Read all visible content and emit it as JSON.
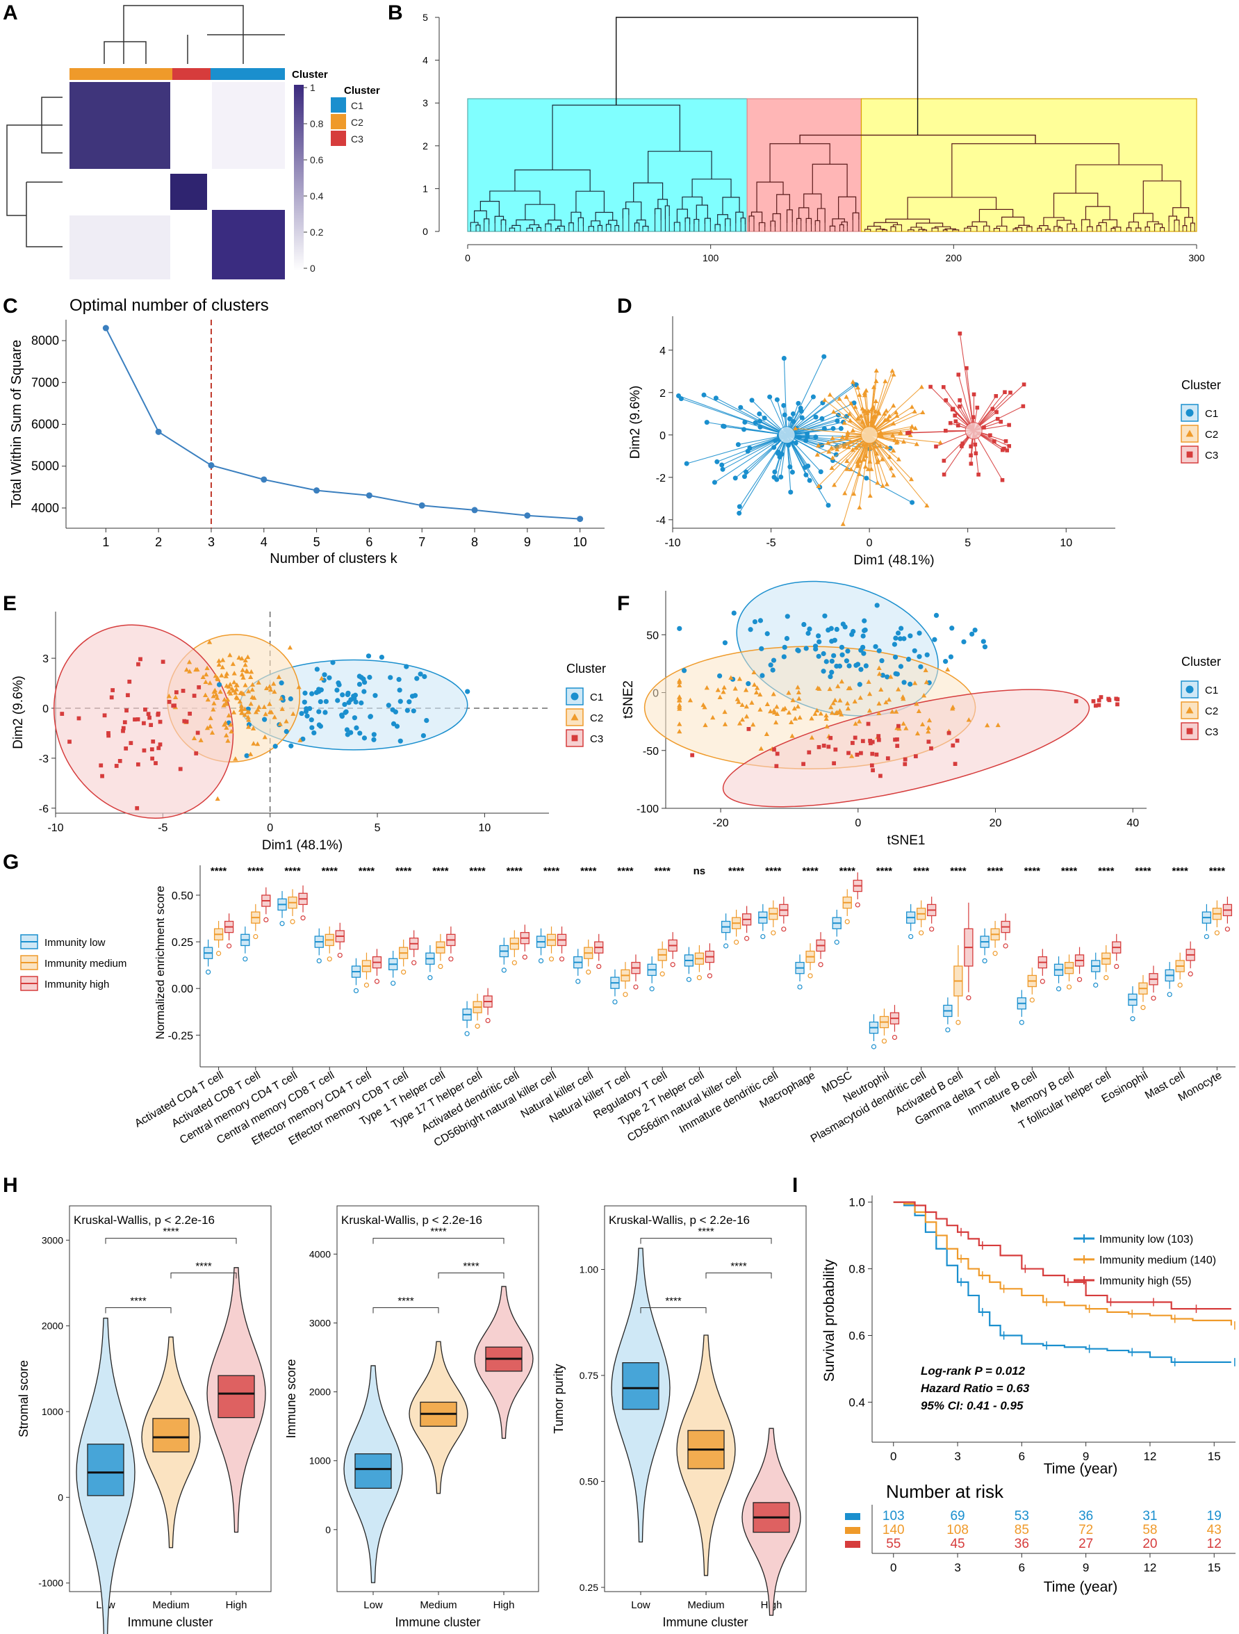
{
  "panel_letters": [
    "A",
    "B",
    "C",
    "D",
    "E",
    "F",
    "G",
    "H",
    "I"
  ],
  "colors": {
    "c1": "#1a8fce",
    "c2": "#ef9a2a",
    "c3": "#d63c3c",
    "heat": "#3b2a7e",
    "cyan": "#80ffff",
    "pink": "#ffb6b6",
    "yellow": "#ffff99"
  },
  "chart_data": [
    {
      "id": "A",
      "type": "heatmap",
      "title": "",
      "legend_title": "Cluster",
      "legend_items": [
        "C1",
        "C2",
        "C3"
      ],
      "scale_title": "Cluster",
      "scale_ticks": [
        "1",
        "0.8",
        "0.6",
        "0.4",
        "0.2",
        "0"
      ],
      "block_order": [
        "C2",
        "C3",
        "C1"
      ],
      "block_sizes": [
        140,
        55,
        103
      ]
    },
    {
      "id": "B",
      "type": "dendrogram",
      "y_ticks": [
        "5",
        "4",
        "3",
        "2",
        "1",
        "0"
      ],
      "x_ticks": [
        "0",
        "100",
        "200",
        "300"
      ],
      "ylim": [
        0,
        5
      ],
      "xlim": [
        0,
        300
      ],
      "merge_heights": {
        "root": 5.0,
        "left": 2.95,
        "right": 2.25
      },
      "groups": [
        {
          "range": [
            0,
            115
          ],
          "fill": "cyan"
        },
        {
          "range": [
            115,
            162
          ],
          "fill": "pink"
        },
        {
          "range": [
            162,
            300
          ],
          "fill": "yellow"
        }
      ]
    },
    {
      "id": "C",
      "type": "line",
      "title": "Optimal number of clusters",
      "xlabel": "Number of clusters k",
      "ylabel": "Total Within Sum of Square",
      "x": [
        1,
        2,
        3,
        4,
        5,
        6,
        7,
        8,
        9,
        10
      ],
      "values": [
        8300,
        5820,
        5020,
        4680,
        4420,
        4300,
        4060,
        3950,
        3820,
        3740
      ],
      "ylim": [
        3600,
        8500
      ],
      "y_ticks": [
        "4000",
        "5000",
        "6000",
        "7000",
        "8000"
      ],
      "optimal_k": 3
    },
    {
      "id": "D",
      "type": "scatter",
      "xlabel": "Dim1 (48.1%)",
      "ylabel": "Dim2 (9.6%)",
      "legend_title": "Cluster",
      "legend_items": [
        "C1",
        "C2",
        "C3"
      ],
      "x_ticks": [
        "-10",
        "-5",
        "0",
        "5",
        "10"
      ],
      "y_ticks": [
        "4",
        "2",
        "0",
        "-2",
        "-4"
      ],
      "xlim": [
        -10,
        12.5
      ],
      "ylim": [
        -4.4,
        5.6
      ],
      "centroids": [
        [
          -4.2,
          0
        ],
        [
          0,
          0
        ],
        [
          5.3,
          0.2
        ]
      ]
    },
    {
      "id": "E",
      "type": "scatter",
      "xlabel": "Dim1 (48.1%)",
      "ylabel": "Dim2 (9.6%)",
      "legend_title": "Cluster",
      "legend_items": [
        "C1",
        "C2",
        "C3"
      ],
      "x_ticks": [
        "-10",
        "-5",
        "0",
        "5",
        "10"
      ],
      "y_ticks": [
        "3",
        "0",
        "-3",
        "-6"
      ],
      "xlim": [
        -10,
        13
      ],
      "ylim": [
        -6.3,
        5.8
      ],
      "centroids": [
        [
          3.9,
          0.2
        ],
        [
          -1.7,
          0.6
        ],
        [
          -5.9,
          -0.8
        ]
      ]
    },
    {
      "id": "F",
      "type": "scatter",
      "xlabel": "tSNE1",
      "ylabel": "tSNE2",
      "legend_title": "Cluster",
      "legend_items": [
        "C1",
        "C2",
        "C3"
      ],
      "x_ticks": [
        "-20",
        "0",
        "20",
        "40"
      ],
      "y_ticks": [
        "50",
        "0",
        "-50",
        "-100"
      ],
      "xlim": [
        -28,
        42
      ],
      "ylim": [
        -100,
        88
      ],
      "centroids": [
        [
          -3,
          38
        ],
        [
          -7,
          -13
        ],
        [
          1,
          -48
        ]
      ]
    },
    {
      "id": "G",
      "type": "box",
      "ylabel": "Normalized enrichment score",
      "y_ticks": [
        "0.50",
        "0.25",
        "0.00",
        "-0.25"
      ],
      "ylim": [
        -0.42,
        0.66
      ],
      "legend_items": [
        "Immunity low",
        "Immunity medium",
        "Immunity high"
      ],
      "categories": [
        "Activated CD4 T cell",
        "Activated CD8 T cell",
        "Central memory CD4 T cell",
        "Central memory CD8 T cell",
        "Effector memory CD4 T cell",
        "Effector memory CD8 T cell",
        "Type 1 T helper cell",
        "Type 17 T helper cell",
        "Activated dendritic cell",
        "CD56bright natural killer cell",
        "Natural killer cell",
        "Natural killer T cell",
        "Regulatory T cell",
        "Type 2 T helper cell",
        "CD56dim natural killer cell",
        "Immature dendritic cell",
        "Macrophage",
        "MDSC",
        "Neutrophil",
        "Plasmacytoid dendritic cell",
        "Activated B cell",
        "Gamma delta T cell",
        "Immature B cell",
        "Memory B cell",
        "T follicular helper cell",
        "Eosinophil",
        "Mast cell",
        "Monocyte"
      ],
      "significance": [
        "****",
        "****",
        "****",
        "****",
        "****",
        "****",
        "****",
        "****",
        "****",
        "****",
        "****",
        "****",
        "****",
        "ns",
        "****",
        "****",
        "****",
        "****",
        "****",
        "****",
        "****",
        "****",
        "****",
        "****",
        "****",
        "****",
        "****",
        "****"
      ],
      "medians": [
        [
          0.19,
          0.29,
          0.33
        ],
        [
          0.26,
          0.38,
          0.47
        ],
        [
          0.45,
          0.46,
          0.48
        ],
        [
          0.25,
          0.26,
          0.28
        ],
        [
          0.09,
          0.12,
          0.14
        ],
        [
          0.13,
          0.19,
          0.24
        ],
        [
          0.16,
          0.22,
          0.26
        ],
        [
          -0.14,
          -0.1,
          -0.07
        ],
        [
          0.2,
          0.24,
          0.27
        ],
        [
          0.25,
          0.26,
          0.26
        ],
        [
          0.14,
          0.19,
          0.22
        ],
        [
          0.03,
          0.07,
          0.11
        ],
        [
          0.1,
          0.18,
          0.23
        ],
        [
          0.15,
          0.16,
          0.17
        ],
        [
          0.33,
          0.35,
          0.37
        ],
        [
          0.38,
          0.4,
          0.42
        ],
        [
          0.11,
          0.17,
          0.23
        ],
        [
          0.35,
          0.46,
          0.55
        ],
        [
          -0.21,
          -0.18,
          -0.16
        ],
        [
          0.38,
          0.4,
          0.42
        ],
        [
          -0.12,
          0.04,
          0.22
        ],
        [
          0.25,
          0.29,
          0.33
        ],
        [
          -0.08,
          0.04,
          0.14
        ],
        [
          0.1,
          0.11,
          0.15
        ],
        [
          0.12,
          0.16,
          0.22
        ],
        [
          -0.06,
          0.0,
          0.05
        ],
        [
          0.07,
          0.12,
          0.18
        ],
        [
          0.38,
          0.4,
          0.42
        ]
      ]
    },
    {
      "id": "H1",
      "type": "violin",
      "title": "Kruskal-Wallis, p < 2.2e-16",
      "xlabel": "Immune cluster",
      "ylabel": "Stromal score",
      "categories": [
        "Low",
        "Medium",
        "High"
      ],
      "medians": [
        290,
        700,
        1210
      ],
      "q1": [
        20,
        530,
        930
      ],
      "q3": [
        620,
        920,
        1420
      ],
      "ylim": [
        -1100,
        3400
      ],
      "y_ticks": [
        "3000",
        "2000",
        "1000",
        "0",
        "-1000"
      ],
      "comparisons": [
        "****",
        "****",
        "****"
      ]
    },
    {
      "id": "H2",
      "type": "violin",
      "title": "Kruskal-Wallis, p < 2.2e-16",
      "xlabel": "Immune cluster",
      "ylabel": "Immune score",
      "categories": [
        "Low",
        "Medium",
        "High"
      ],
      "medians": [
        880,
        1680,
        2480
      ],
      "q1": [
        600,
        1500,
        2300
      ],
      "q3": [
        1100,
        1850,
        2650
      ],
      "ylim": [
        -900,
        4700
      ],
      "y_ticks": [
        "4000",
        "3000",
        "2000",
        "1000",
        "0"
      ],
      "comparisons": [
        "****",
        "****",
        "****"
      ]
    },
    {
      "id": "H3",
      "type": "violin",
      "title": "Kruskal-Wallis, p < 2.2e-16",
      "xlabel": "Immune cluster",
      "ylabel": "Tumor purity",
      "categories": [
        "Low",
        "Medium",
        "High"
      ],
      "medians": [
        0.72,
        0.575,
        0.415
      ],
      "q1": [
        0.67,
        0.53,
        0.38
      ],
      "q3": [
        0.78,
        0.62,
        0.45
      ],
      "ylim": [
        0.24,
        1.15
      ],
      "y_ticks": [
        "1.00",
        "0.75",
        "0.50",
        "0.25"
      ],
      "comparisons": [
        "****",
        "****",
        "****"
      ]
    },
    {
      "id": "I",
      "type": "line",
      "xlabel": "Time (year)",
      "ylabel": "Survival probability",
      "x_ticks": [
        "0",
        "3",
        "6",
        "9",
        "12",
        "15"
      ],
      "y_ticks": [
        "1.0",
        "0.8",
        "0.6",
        "0.4"
      ],
      "xlim": [
        -1,
        16
      ],
      "ylim": [
        0.28,
        1.02
      ],
      "series": [
        {
          "name": "Immunity low (103)",
          "x": [
            0,
            0.5,
            1,
            1.5,
            2,
            2.5,
            3,
            3.5,
            4,
            4.5,
            5,
            6,
            7,
            8,
            9,
            10,
            11,
            12,
            13,
            14,
            15.8
          ],
          "values": [
            1,
            0.99,
            0.96,
            0.91,
            0.86,
            0.81,
            0.76,
            0.72,
            0.67,
            0.63,
            0.6,
            0.575,
            0.57,
            0.565,
            0.56,
            0.555,
            0.55,
            0.535,
            0.52,
            0.52,
            0.52
          ]
        },
        {
          "name": "Immunity medium (140)",
          "x": [
            0,
            0.5,
            1,
            1.5,
            2,
            2.5,
            3,
            3.5,
            4,
            4.5,
            5,
            6,
            7,
            8,
            9,
            10,
            11,
            12,
            13,
            14,
            15.8
          ],
          "values": [
            1,
            0.995,
            0.97,
            0.94,
            0.9,
            0.86,
            0.83,
            0.8,
            0.78,
            0.76,
            0.74,
            0.72,
            0.7,
            0.69,
            0.68,
            0.67,
            0.665,
            0.66,
            0.65,
            0.645,
            0.63
          ]
        },
        {
          "name": "Immunity high (55)",
          "x": [
            0,
            0.5,
            1,
            1.5,
            2,
            2.5,
            3,
            3.5,
            4,
            5,
            6,
            7,
            8,
            9,
            10,
            11,
            12,
            13,
            14,
            15.8
          ],
          "values": [
            1,
            1,
            0.99,
            0.97,
            0.95,
            0.93,
            0.91,
            0.89,
            0.87,
            0.84,
            0.8,
            0.78,
            0.76,
            0.72,
            0.7,
            0.7,
            0.7,
            0.68,
            0.68,
            0.68
          ]
        }
      ],
      "annotations": [
        "Log-rank P = 0.012",
        "Hazard Ratio = 0.63",
        "95% CI: 0.41 - 0.95"
      ],
      "risk_title": "Number at risk",
      "risk_times": [
        "0",
        "3",
        "6",
        "9",
        "12",
        "15"
      ],
      "risk_table": [
        [
          "103",
          "69",
          "53",
          "36",
          "31",
          "19"
        ],
        [
          "140",
          "108",
          "85",
          "72",
          "58",
          "43"
        ],
        [
          "55",
          "45",
          "36",
          "27",
          "20",
          "12"
        ]
      ]
    }
  ]
}
